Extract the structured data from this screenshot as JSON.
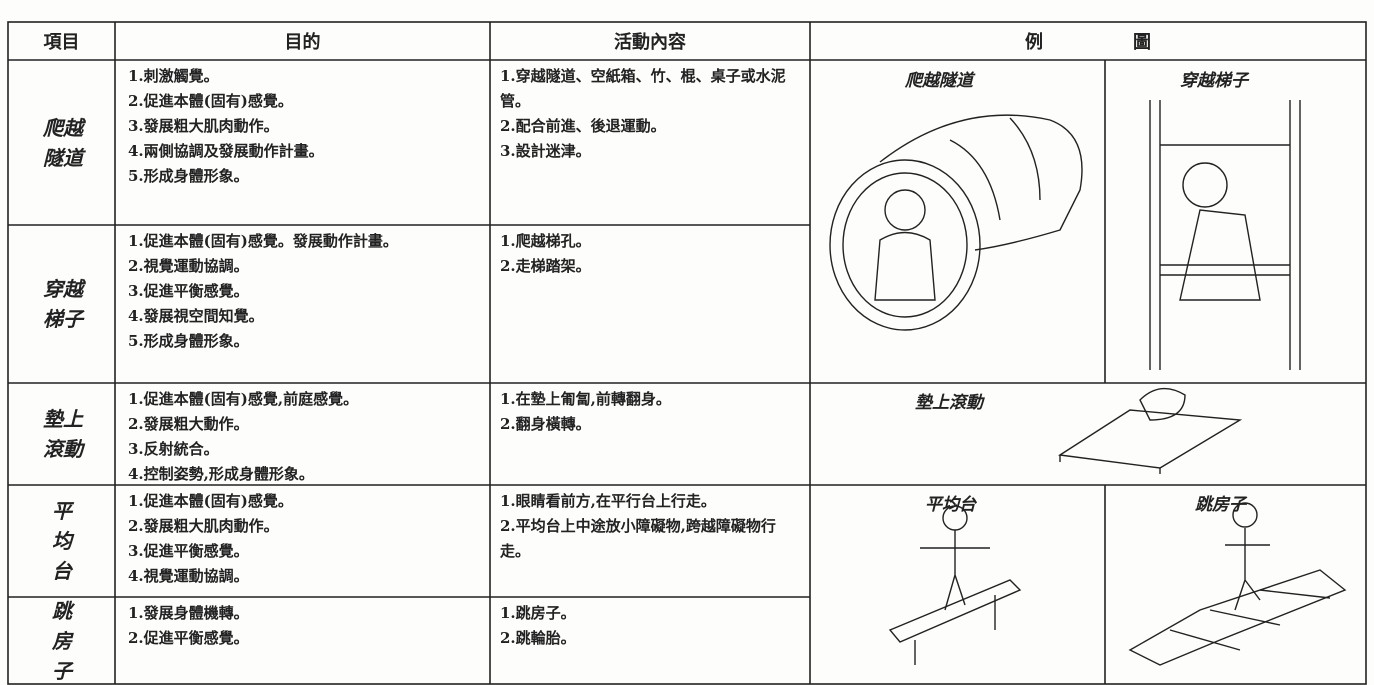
{
  "header": {
    "item": "項目",
    "purpose": "目的",
    "activity": "活動內容",
    "illustration": "例　　　　　圖"
  },
  "rows": [
    {
      "item": "爬越隧道",
      "purpose": [
        "1.刺激觸覺。",
        "2.促進本體(固有)感覺。",
        "3.發展粗大肌肉動作。",
        "4.兩側協調及發展動作計畫。",
        "5.形成身體形象。"
      ],
      "activities": [
        "1.穿越隧道、空紙箱、竹、棍、桌子或水泥管。",
        "2.配合前進、後退運動。",
        "3.設計迷津。"
      ]
    },
    {
      "item": "穿越梯子",
      "purpose": [
        "1.促進本體(固有)感覺。發展動作計畫。",
        "2.視覺運動協調。",
        "3.促進平衡感覺。",
        "4.發展視空間知覺。",
        "5.形成身體形象。"
      ],
      "activities": [
        "1.爬越梯孔。",
        "2.走梯踏架。"
      ]
    },
    {
      "item": "墊上滾動",
      "purpose": [
        "1.促進本體(固有)感覺,前庭感覺。",
        "2.發展粗大動作。",
        "3.反射統合。",
        "4.控制姿勢,形成身體形象。"
      ],
      "activities": [
        "1.在墊上匍匐,前轉翻身。",
        "2.翻身橫轉。"
      ]
    },
    {
      "item": "平均台",
      "purpose": [
        "1.促進本體(固有)感覺。",
        "2.發展粗大肌肉動作。",
        "3.促進平衡感覺。",
        "4.視覺運動協調。"
      ],
      "activities": [
        "1.眼睛看前方,在平行台上行走。",
        "2.平均台上中途放小障礙物,跨越障礙物行走。"
      ]
    },
    {
      "item": "跳房子",
      "purpose": [
        "1.發展身體機轉。",
        "2.促進平衡感覺。"
      ],
      "activities": [
        "1.跳房子。",
        "2.跳輪胎。"
      ]
    }
  ],
  "illustrations": [
    "爬越隧道",
    "穿越梯子",
    "墊上滾動",
    "平均台",
    "跳房子"
  ]
}
